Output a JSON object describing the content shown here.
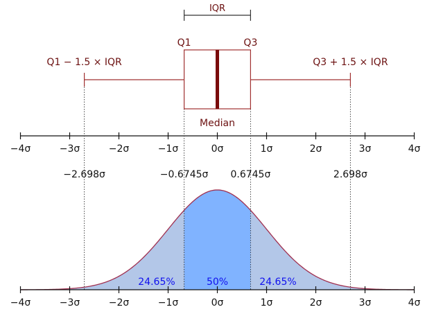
{
  "colors": {
    "box_stroke": "#a03030",
    "median": "#7a0a0a",
    "label_maroon": "#6b1010",
    "axis": "#111111",
    "inner_fill": "#80b3ff",
    "tail_fill": "#b3c7e8",
    "curve": "#a03050",
    "pct_text": "#1010ee"
  },
  "boxplot": {
    "iqr_label": "IQR",
    "q1_label": "Q1",
    "q3_label": "Q3",
    "median_label": "Median",
    "lower_whisker_label": "Q1 − 1.5 × IQR",
    "upper_whisker_label": "Q3 + 1.5 × IQR"
  },
  "axis_ticks": [
    "−4σ",
    "−3σ",
    "−2σ",
    "−1σ",
    "0σ",
    "1σ",
    "2σ",
    "3σ",
    "4σ"
  ],
  "marker_values": [
    "−2.698σ",
    "−0.6745σ",
    "0.6745σ",
    "2.698σ"
  ],
  "percent_labels": {
    "left": "24.65%",
    "center": "50%",
    "right": "24.65%"
  }
}
